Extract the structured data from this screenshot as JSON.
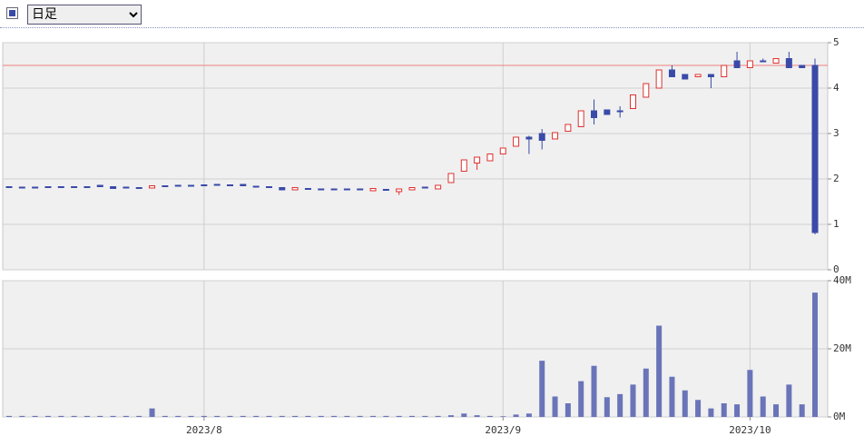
{
  "controls": {
    "period": "日足"
  },
  "chart_data": [
    {
      "type": "candlestick",
      "up_color": "#e03030",
      "down_color": "#3a4aa8",
      "ylim": [
        0,
        5
      ],
      "yticks": [
        0,
        1,
        2,
        3,
        4,
        5
      ],
      "grid": true,
      "reference_line": 4.5,
      "reference_color": "#f08080",
      "open": [
        1.83,
        1.82,
        1.82,
        1.83,
        1.83,
        1.83,
        1.83,
        1.86,
        1.83,
        1.82,
        1.81,
        1.8,
        1.85,
        1.86,
        1.86,
        1.87,
        1.88,
        1.87,
        1.88,
        1.84,
        1.83,
        1.81,
        1.76,
        1.79,
        1.78,
        1.78,
        1.78,
        1.78,
        1.74,
        1.77,
        1.72,
        1.76,
        1.82,
        1.78,
        1.92,
        2.17,
        2.35,
        2.4,
        2.55,
        2.72,
        2.92,
        3.0,
        2.88,
        3.05,
        3.15,
        3.5,
        3.52,
        3.5,
        3.55,
        3.8,
        4.0,
        4.4,
        4.3,
        4.25,
        4.3,
        4.25,
        4.6,
        4.45,
        4.6,
        4.55,
        4.65,
        4.5,
        4.5
      ],
      "high": [
        1.83,
        1.82,
        1.82,
        1.83,
        1.83,
        1.83,
        1.83,
        1.86,
        1.83,
        1.82,
        1.81,
        1.85,
        1.85,
        1.86,
        1.86,
        1.87,
        1.88,
        1.87,
        1.88,
        1.84,
        1.83,
        1.81,
        1.81,
        1.79,
        1.78,
        1.78,
        1.78,
        1.78,
        1.79,
        1.77,
        1.78,
        1.81,
        1.82,
        1.86,
        2.12,
        2.42,
        2.48,
        2.55,
        2.68,
        2.92,
        2.95,
        3.1,
        3.02,
        3.2,
        3.5,
        3.75,
        3.52,
        3.6,
        3.85,
        4.1,
        4.4,
        4.5,
        4.3,
        4.3,
        4.3,
        4.5,
        4.8,
        4.6,
        4.65,
        4.65,
        4.8,
        4.5,
        4.65
      ],
      "low": [
        1.81,
        1.82,
        1.82,
        1.83,
        1.83,
        1.83,
        1.83,
        1.83,
        1.79,
        1.82,
        1.81,
        1.8,
        1.85,
        1.86,
        1.86,
        1.87,
        1.88,
        1.87,
        1.85,
        1.84,
        1.83,
        1.76,
        1.76,
        1.79,
        1.78,
        1.78,
        1.78,
        1.78,
        1.74,
        1.77,
        1.65,
        1.76,
        1.82,
        1.78,
        1.92,
        2.17,
        2.2,
        2.4,
        2.55,
        2.72,
        2.55,
        2.65,
        2.88,
        3.05,
        3.15,
        3.2,
        3.42,
        3.35,
        3.55,
        3.8,
        4.0,
        4.25,
        4.2,
        4.25,
        4.0,
        4.25,
        4.45,
        4.45,
        4.6,
        4.55,
        4.45,
        4.45,
        0.78
      ],
      "close": [
        1.81,
        1.82,
        1.82,
        1.83,
        1.83,
        1.83,
        1.83,
        1.83,
        1.79,
        1.82,
        1.81,
        1.85,
        1.85,
        1.86,
        1.86,
        1.87,
        1.88,
        1.87,
        1.85,
        1.84,
        1.83,
        1.76,
        1.81,
        1.79,
        1.78,
        1.78,
        1.78,
        1.78,
        1.79,
        1.77,
        1.78,
        1.81,
        1.82,
        1.86,
        2.12,
        2.42,
        2.48,
        2.55,
        2.68,
        2.92,
        2.88,
        2.85,
        3.02,
        3.2,
        3.5,
        3.35,
        3.42,
        3.5,
        3.85,
        4.1,
        4.4,
        4.25,
        4.2,
        4.3,
        4.25,
        4.5,
        4.45,
        4.6,
        4.6,
        4.65,
        4.45,
        4.45,
        0.82
      ]
    },
    {
      "type": "bar",
      "color": "#6a74b8",
      "categories": [
        null,
        null,
        null,
        null,
        null,
        null,
        null,
        null,
        null,
        null,
        null,
        null,
        null,
        null,
        null,
        "2023/8",
        null,
        null,
        null,
        null,
        null,
        null,
        null,
        null,
        null,
        null,
        null,
        null,
        null,
        null,
        null,
        null,
        null,
        null,
        null,
        null,
        null,
        null,
        "2023/9",
        null,
        null,
        null,
        null,
        null,
        null,
        null,
        null,
        null,
        null,
        null,
        null,
        null,
        null,
        null,
        null,
        null,
        null,
        "2023/10",
        null,
        null,
        null,
        null,
        null
      ],
      "ylim": [
        0,
        40
      ],
      "yticks": [
        {
          "value": 0,
          "label": "0M"
        },
        {
          "value": 20,
          "label": "20M"
        },
        {
          "value": 40,
          "label": "40M"
        }
      ],
      "grid": true,
      "values": [
        0.3,
        0.3,
        0.3,
        0.3,
        0.3,
        0.3,
        0.3,
        0.3,
        0.3,
        0.3,
        0.3,
        2.5,
        0.3,
        0.3,
        0.3,
        0.3,
        0.3,
        0.3,
        0.3,
        0.3,
        0.3,
        0.3,
        0.3,
        0.3,
        0.3,
        0.3,
        0.3,
        0.3,
        0.3,
        0.3,
        0.3,
        0.3,
        0.3,
        0.3,
        0.5,
        1,
        0.5,
        0.3,
        0.2,
        0.7,
        1,
        16.5,
        6,
        4,
        10.5,
        15,
        5.8,
        6.7,
        9.5,
        14.2,
        26.8,
        11.8,
        7.8,
        5,
        2.5,
        4,
        3.7,
        13.8,
        6,
        3.7,
        9.5,
        3.7,
        36.5
      ]
    }
  ]
}
